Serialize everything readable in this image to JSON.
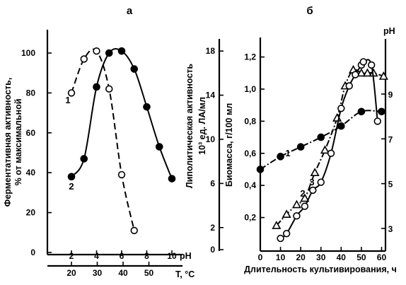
{
  "chart_data": [
    {
      "panel_label": "а",
      "type": "line",
      "ylabel": "Ферментативная активность,",
      "ylabel2": "% от максимальной",
      "ylim": [
        0,
        110
      ],
      "yticks": [
        0,
        20,
        40,
        60,
        80,
        100
      ],
      "xlabel": "pH",
      "xticks": [
        2,
        4,
        6,
        8,
        10
      ],
      "xlim": [
        1,
        11
      ],
      "x2label": "T, °C",
      "x2ticks": [
        20,
        30,
        40,
        50
      ],
      "series": [
        {
          "name": "1",
          "style": "dashed",
          "marker": "open-circle",
          "x": [
            2,
            3,
            4,
            5,
            6,
            7
          ],
          "y": [
            80,
            97,
            101,
            82,
            39,
            11
          ]
        },
        {
          "name": "2",
          "style": "solid",
          "marker": "filled-circle",
          "x": [
            2,
            3,
            4,
            5,
            6,
            7,
            8,
            9,
            10
          ],
          "y": [
            38,
            47,
            83,
            100,
            101,
            92,
            73,
            53,
            37
          ]
        }
      ]
    },
    {
      "panel_label": "б",
      "type": "line",
      "xlabel": "Длительность культивирования, ч",
      "xlim": [
        0,
        60
      ],
      "xticks": [
        0,
        10,
        20,
        30,
        40,
        50,
        60
      ],
      "y_outer_label": "Липолитическая активность",
      "y_outer_label2": "10³ ед. ЛА/мл",
      "y_outer_ticks": [
        0,
        2,
        6,
        10,
        14,
        18
      ],
      "y_outer_ticks_display": [
        "0",
        "2",
        "6",
        "10",
        "14",
        "18"
      ],
      "y_inner_label": "Биомасса, г/100 мл",
      "y_inner_lim": [
        0,
        1.3
      ],
      "y_inner_ticks_display": [
        "0,2",
        "0,4",
        "0,6",
        "0,8",
        "1,0",
        "1,2"
      ],
      "y_right_label": "pH",
      "y_right_ticks": [
        3,
        5,
        7,
        9
      ],
      "series": [
        {
          "name": "1",
          "style": "dash-dot",
          "marker": "filled-circle",
          "x": [
            0,
            10,
            20,
            30,
            40,
            50,
            60
          ],
          "y": [
            0.5,
            0.58,
            0.64,
            0.7,
            0.77,
            0.86,
            0.86
          ]
        },
        {
          "name": "2",
          "style": "dash-dot",
          "marker": "open-triangle",
          "x": [
            8,
            13,
            18,
            22,
            27,
            32,
            38,
            42,
            46,
            50,
            53,
            56,
            61
          ],
          "y": [
            0.15,
            0.22,
            0.28,
            0.32,
            0.48,
            0.62,
            0.82,
            1.02,
            1.12,
            1.1,
            1.1,
            1.1,
            1.08
          ]
        },
        {
          "name": "3",
          "style": "solid",
          "marker": "open-circle",
          "x": [
            10,
            13,
            18,
            22,
            26,
            30,
            35,
            40,
            44,
            47,
            50,
            51,
            55,
            58
          ],
          "y": [
            0.07,
            0.1,
            0.21,
            0.27,
            0.37,
            0.42,
            0.6,
            0.88,
            1.02,
            1.09,
            1.15,
            1.17,
            1.15,
            0.8
          ]
        }
      ]
    }
  ]
}
